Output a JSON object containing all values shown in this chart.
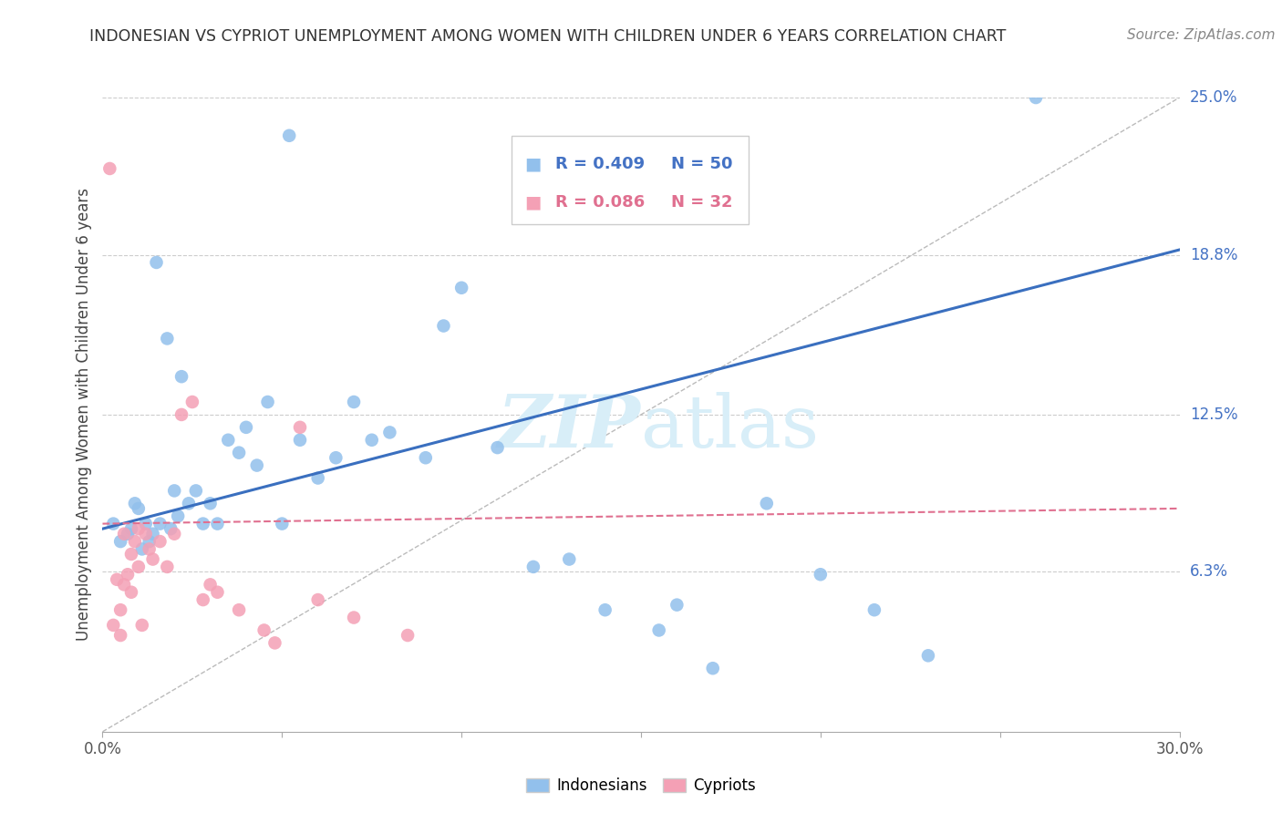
{
  "title": "INDONESIAN VS CYPRIOT UNEMPLOYMENT AMONG WOMEN WITH CHILDREN UNDER 6 YEARS CORRELATION CHART",
  "source": "Source: ZipAtlas.com",
  "ylabel": "Unemployment Among Women with Children Under 6 years",
  "xlim": [
    0.0,
    0.3
  ],
  "ylim": [
    0.0,
    0.25
  ],
  "y_tick_labels_right": [
    "25.0%",
    "18.8%",
    "12.5%",
    "6.3%"
  ],
  "y_tick_values_right": [
    0.25,
    0.188,
    0.125,
    0.063
  ],
  "legend_r_blue": "R = 0.409",
  "legend_n_blue": "N = 50",
  "legend_r_pink": "R = 0.086",
  "legend_n_pink": "N = 32",
  "indonesian_color": "#92C0EC",
  "cypriot_color": "#F4A0B5",
  "trendline_blue_color": "#3A6FBF",
  "trendline_pink_color": "#E07090",
  "ref_line_color": "#BBBBBB",
  "watermark_color": "#D8EEF8",
  "background_color": "#FFFFFF",
  "indonesian_x": [
    0.003,
    0.005,
    0.007,
    0.008,
    0.009,
    0.01,
    0.011,
    0.012,
    0.013,
    0.014,
    0.015,
    0.016,
    0.018,
    0.019,
    0.02,
    0.021,
    0.022,
    0.024,
    0.026,
    0.028,
    0.03,
    0.032,
    0.035,
    0.038,
    0.04,
    0.043,
    0.046,
    0.05,
    0.055,
    0.06,
    0.065,
    0.07,
    0.075,
    0.08,
    0.09,
    0.095,
    0.1,
    0.11,
    0.12,
    0.13,
    0.14,
    0.155,
    0.16,
    0.17,
    0.185,
    0.2,
    0.215,
    0.23,
    0.26,
    0.052
  ],
  "indonesian_y": [
    0.082,
    0.075,
    0.078,
    0.08,
    0.09,
    0.088,
    0.072,
    0.082,
    0.075,
    0.078,
    0.185,
    0.082,
    0.155,
    0.08,
    0.095,
    0.085,
    0.14,
    0.09,
    0.095,
    0.082,
    0.09,
    0.082,
    0.115,
    0.11,
    0.12,
    0.105,
    0.13,
    0.082,
    0.115,
    0.1,
    0.108,
    0.13,
    0.115,
    0.118,
    0.108,
    0.16,
    0.175,
    0.112,
    0.065,
    0.068,
    0.048,
    0.04,
    0.05,
    0.025,
    0.09,
    0.062,
    0.048,
    0.03,
    0.25,
    0.235
  ],
  "cypriot_x": [
    0.002,
    0.003,
    0.004,
    0.005,
    0.005,
    0.006,
    0.006,
    0.007,
    0.008,
    0.008,
    0.009,
    0.01,
    0.01,
    0.011,
    0.012,
    0.013,
    0.014,
    0.016,
    0.018,
    0.02,
    0.022,
    0.025,
    0.028,
    0.03,
    0.032,
    0.038,
    0.045,
    0.048,
    0.055,
    0.06,
    0.07,
    0.085
  ],
  "cypriot_y": [
    0.222,
    0.042,
    0.06,
    0.038,
    0.048,
    0.058,
    0.078,
    0.062,
    0.055,
    0.07,
    0.075,
    0.08,
    0.065,
    0.042,
    0.078,
    0.072,
    0.068,
    0.075,
    0.065,
    0.078,
    0.125,
    0.13,
    0.052,
    0.058,
    0.055,
    0.048,
    0.04,
    0.035,
    0.12,
    0.052,
    0.045,
    0.038
  ]
}
